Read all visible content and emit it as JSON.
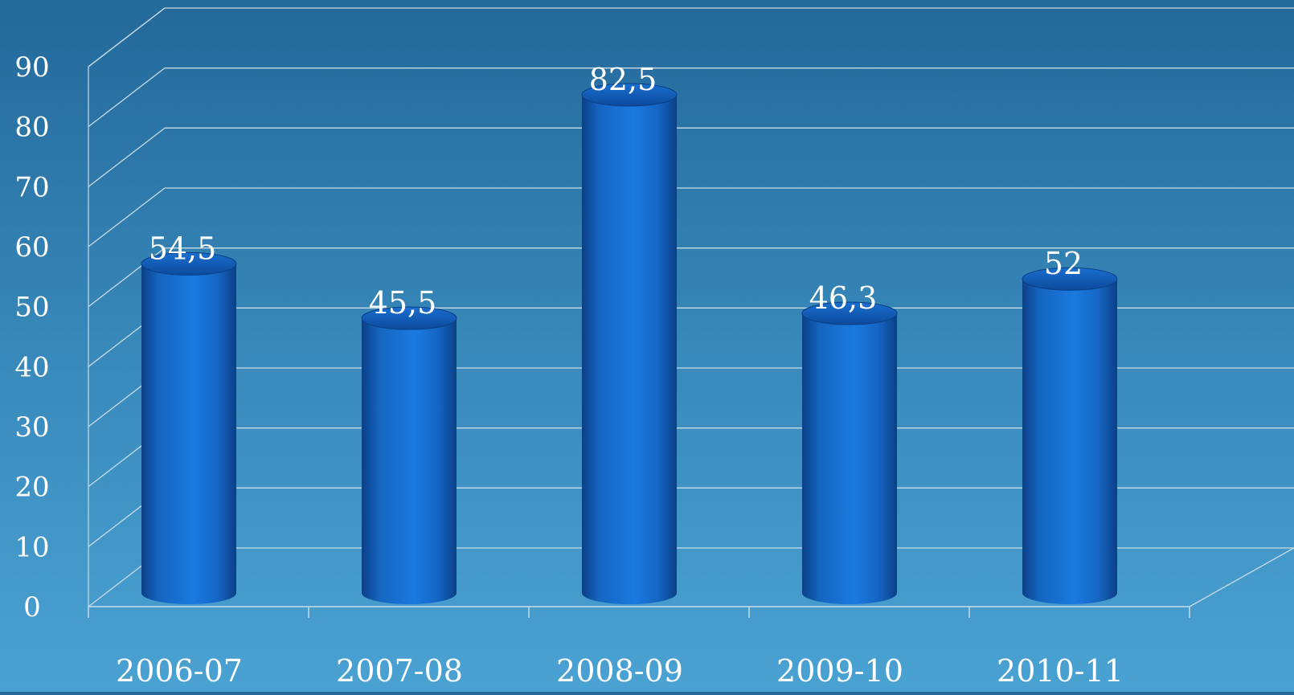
{
  "chart_data": {
    "type": "bar",
    "style": "3d-cylinder",
    "title": "",
    "xlabel": "",
    "ylabel": "",
    "categories": [
      "2006-07",
      "2007-08",
      "2008-09",
      "2009-10",
      "2010-11"
    ],
    "values": [
      54.5,
      45.5,
      82.5,
      46.3,
      52
    ],
    "data_labels": [
      "54,5",
      "45,5",
      "82,5",
      "46,3",
      "52"
    ],
    "ylim": [
      0,
      90
    ],
    "yticks": [
      0,
      10,
      20,
      30,
      40,
      50,
      60,
      70,
      80,
      90
    ],
    "grid": true,
    "legend": "none",
    "colors": {
      "bar": "#1565c0",
      "bar_highlight": "#1e88e5",
      "grid": "#c9dbe6"
    }
  }
}
